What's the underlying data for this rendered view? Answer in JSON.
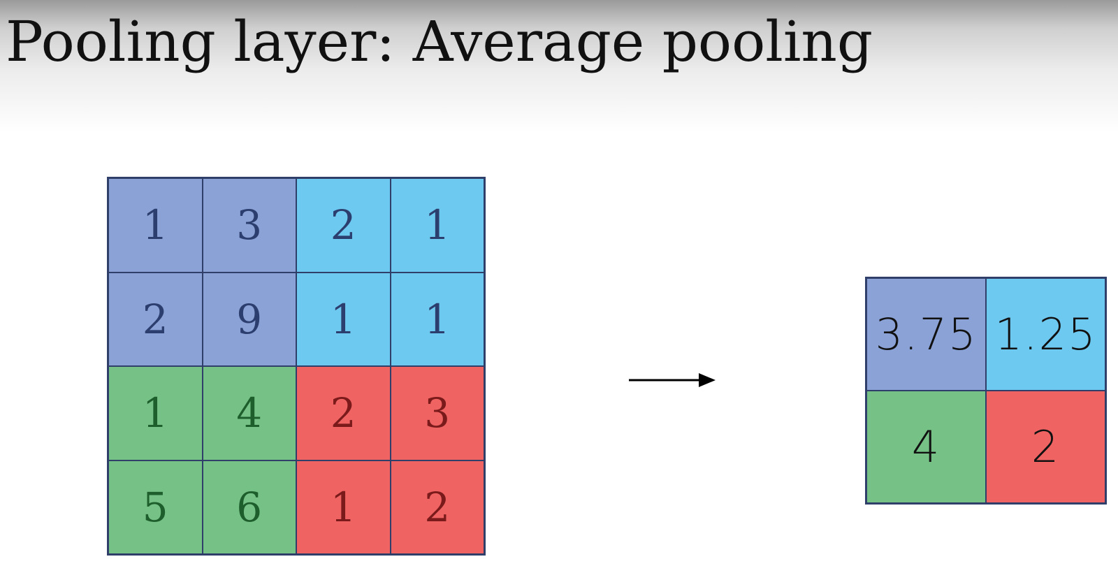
{
  "title": "Pooling layer: Average pooling",
  "colors": {
    "blue": "#8ba2d6",
    "cyan": "#6ec9f1",
    "green": "#76c286",
    "red": "#ef6363",
    "text_blue": "#2c3e6e",
    "text_green": "#1e5e2d",
    "text_red": "#7a1a1a"
  },
  "input_matrix": {
    "rows": [
      [
        "1",
        "3",
        "2",
        "1"
      ],
      [
        "2",
        "9",
        "1",
        "1"
      ],
      [
        "1",
        "4",
        "2",
        "3"
      ],
      [
        "5",
        "6",
        "1",
        "2"
      ]
    ]
  },
  "output_matrix": {
    "rows": [
      [
        "3.75",
        "1.25"
      ],
      [
        "4",
        "2"
      ]
    ]
  },
  "arrow_icon": "right-arrow-icon"
}
